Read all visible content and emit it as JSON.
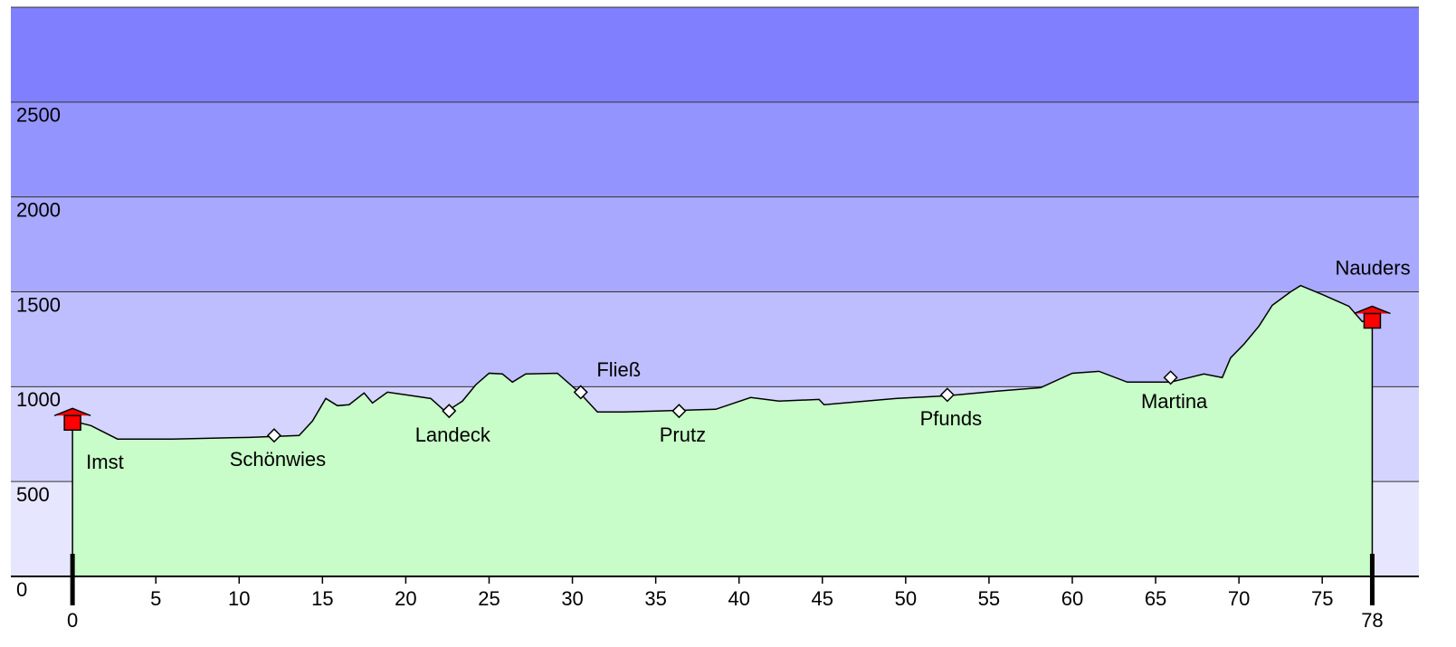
{
  "chart_data": {
    "type": "area",
    "x": [
      0,
      1.1,
      2.7,
      6.0,
      10.6,
      13.6,
      14.4,
      15.2,
      15.9,
      16.6,
      17.5,
      18.0,
      18.9,
      20.4,
      21.5,
      22.4,
      23.4,
      24.2,
      25.0,
      25.8,
      26.4,
      27.2,
      29.1,
      30.4,
      31.5,
      33.1,
      34.8,
      38.6,
      40.7,
      42.4,
      44.8,
      45.1,
      49.4,
      52.5,
      55.4,
      58.1,
      60.0,
      61.6,
      63.3,
      65.9,
      67.9,
      69.0,
      69.5,
      70.3,
      71.2,
      72.0,
      73.1,
      73.7,
      75.0,
      76.6,
      77.4,
      78.0
    ],
    "values": [
      819,
      795,
      724,
      724,
      733,
      743,
      819,
      938,
      900,
      905,
      967,
      914,
      971,
      952,
      938,
      867,
      924,
      1010,
      1071,
      1067,
      1024,
      1067,
      1071,
      971,
      867,
      867,
      871,
      881,
      943,
      924,
      933,
      905,
      938,
      952,
      976,
      995,
      1071,
      1081,
      1024,
      1024,
      1067,
      1048,
      1152,
      1224,
      1319,
      1429,
      1500,
      1533,
      1486,
      1424,
      1343,
      1357
    ],
    "color": "#c8fcc8",
    "xlim": [
      -3.7,
      80.8
    ],
    "ylim": [
      0,
      3000
    ],
    "xticks": [
      5,
      10,
      15,
      20,
      25,
      30,
      35,
      40,
      45,
      50,
      55,
      60,
      65,
      70,
      75
    ],
    "yticks": [
      0,
      500,
      1000,
      1500,
      2000,
      2500
    ],
    "band_colors": [
      "#e6e6ff",
      "#d4d4ff",
      "#bebeff",
      "#a8a8ff",
      "#9494ff",
      "#8080ff"
    ],
    "endpoints": [
      0,
      78
    ],
    "places": [
      {
        "name": "Imst",
        "km": 0,
        "elevation": 819,
        "kind": "start",
        "label": "below"
      },
      {
        "name": "Schönwies",
        "km": 12.1,
        "elevation": 743,
        "kind": "town",
        "label": "below"
      },
      {
        "name": "Landeck",
        "km": 22.6,
        "elevation": 872,
        "kind": "town",
        "label": "below"
      },
      {
        "name": "Fließ",
        "km": 30.5,
        "elevation": 971,
        "kind": "town",
        "label": "above"
      },
      {
        "name": "Prutz",
        "km": 36.4,
        "elevation": 872,
        "kind": "town",
        "label": "below"
      },
      {
        "name": "Pfunds",
        "km": 52.5,
        "elevation": 957,
        "kind": "town",
        "label": "below"
      },
      {
        "name": "Martina",
        "km": 65.9,
        "elevation": 1048,
        "kind": "town",
        "label": "below"
      },
      {
        "name": "Nauders",
        "km": 78,
        "elevation": 1357,
        "kind": "end",
        "label": "above"
      }
    ]
  }
}
